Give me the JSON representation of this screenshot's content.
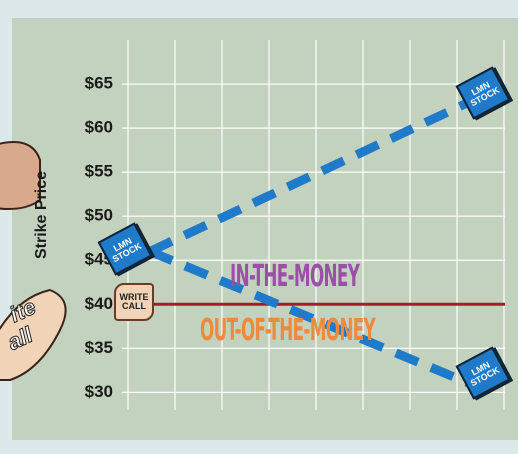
{
  "chart_data": {
    "type": "line",
    "ylabel": "Strike Price",
    "ylim": [
      28,
      70
    ],
    "yticks": [
      {
        "value": 30,
        "label": "$30"
      },
      {
        "value": 35,
        "label": "$35"
      },
      {
        "value": 40,
        "label": "$40"
      },
      {
        "value": 45,
        "label": "$45"
      },
      {
        "value": 50,
        "label": "$50"
      },
      {
        "value": 55,
        "label": "$55"
      },
      {
        "value": 60,
        "label": "$60"
      },
      {
        "value": 65,
        "label": "$65"
      }
    ],
    "grid": true,
    "series": [
      {
        "color": "#1f7bc9",
        "values": [
          46,
          63
        ]
      },
      {
        "color": "#1f7bc9",
        "values": [
          46,
          31
        ]
      }
    ],
    "reference_line": {
      "value": 40,
      "color": "#b0182a"
    },
    "annotations": {
      "stock_left": "LMN STOCK",
      "stock_top": "LMN STOCK",
      "stock_bottom": "LMN STOCK",
      "write_call": "WRITE CALL",
      "in_the_money": "IN-THE-MONEY",
      "out_of_the_money": "OUT-OF-THE-MONEY",
      "left_fragment_1": "ite",
      "left_fragment_2": "all"
    }
  }
}
